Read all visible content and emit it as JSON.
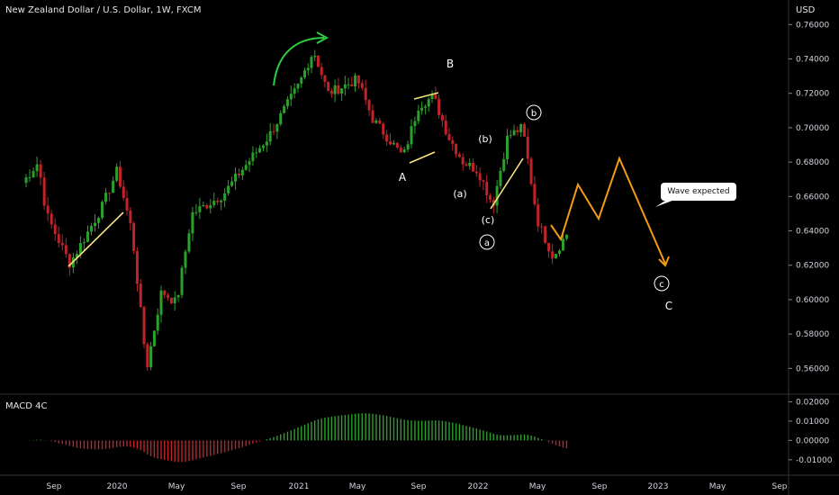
{
  "chart_title": "New Zealand Dollar / U.S. Dollar, 1W, FXCM",
  "currency_label": "USD",
  "macd_title": "MACD 4C",
  "colors": {
    "background": "#000000",
    "up": "#2ca02c",
    "down": "#c0232a",
    "orange": "#f39c12",
    "yellow": "#f6e27f",
    "arrow": "#2ecc40",
    "axis_text": "#d1d4dc"
  },
  "annotations": {
    "A": "A",
    "B": "B",
    "C": "C",
    "a_paren": "(a)",
    "b_paren": "(b)",
    "c_paren": "(c)",
    "a_circle": "a",
    "b_circle": "b",
    "c_circle": "c",
    "callout": "Wave expected"
  },
  "chart_data": [
    {
      "type": "candlestick",
      "title": "New Zealand Dollar / U.S. Dollar, 1W, FXCM",
      "ylabel": "USD",
      "ylim": [
        0.545,
        0.768
      ],
      "y_ticks": [
        "0.76000",
        "0.74000",
        "0.72000",
        "0.70000",
        "0.68000",
        "0.66000",
        "0.64000",
        "0.62000",
        "0.60000",
        "0.58000",
        "0.56000"
      ],
      "x_ticks": [
        "Sep",
        "2020",
        "May",
        "Sep",
        "2021",
        "May",
        "Sep",
        "2022",
        "May",
        "Sep",
        "2023",
        "May",
        "Sep"
      ],
      "price_path": [
        [
          "2019-07",
          0.668
        ],
        [
          "2019-08",
          0.68
        ],
        [
          "2019-08",
          0.65
        ],
        [
          "2019-09",
          0.64
        ],
        [
          "2019-10",
          0.621
        ],
        [
          "2019-12",
          0.653
        ],
        [
          "2020-01",
          0.675
        ],
        [
          "2020-02",
          0.64
        ],
        [
          "2020-03",
          0.56
        ],
        [
          "2020-04",
          0.605
        ],
        [
          "2020-05",
          0.598
        ],
        [
          "2020-06",
          0.65
        ],
        [
          "2020-08",
          0.661
        ],
        [
          "2020-09",
          0.673
        ],
        [
          "2020-11",
          0.695
        ],
        [
          "2021-01",
          0.725
        ],
        [
          "2021-02",
          0.745
        ],
        [
          "2021-03",
          0.72
        ],
        [
          "2021-05",
          0.728
        ],
        [
          "2021-06",
          0.705
        ],
        [
          "2021-08",
          0.683
        ],
        [
          "2021-09",
          0.713
        ],
        [
          "2021-10",
          0.718
        ],
        [
          "2021-11",
          0.695
        ],
        [
          "2021-12",
          0.68
        ],
        [
          "2022-01",
          0.675
        ],
        [
          "2022-02",
          0.655
        ],
        [
          "2022-03",
          0.695
        ],
        [
          "2022-04",
          0.7
        ],
        [
          "2022-05",
          0.646
        ],
        [
          "2022-06",
          0.625
        ],
        [
          "2022-07",
          0.64
        ]
      ],
      "projection": [
        [
          "2022-07",
          0.646
        ],
        [
          "2022-08",
          0.636
        ],
        [
          "2022-09",
          0.668
        ],
        [
          "2022-11",
          0.648
        ],
        [
          "2022-12",
          0.683
        ],
        [
          "2023-02",
          0.62
        ]
      ]
    },
    {
      "type": "bar",
      "title": "MACD 4C",
      "ylim": [
        -0.018,
        0.023
      ],
      "y_ticks": [
        "0.02000",
        "0.01000",
        "0.00000",
        "-0.01000"
      ]
    }
  ]
}
